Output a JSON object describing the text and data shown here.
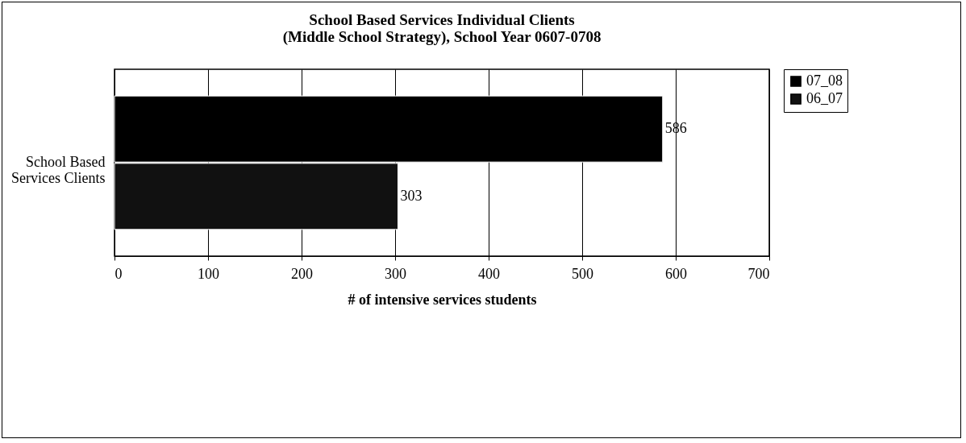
{
  "chart_data": {
    "type": "bar",
    "orientation": "horizontal",
    "title": "School Based Services Individual Clients (Middle School Strategy), School Year 0607-0708",
    "xlabel": "# of intensive services students",
    "categories": [
      "School Based Services Clients"
    ],
    "series": [
      {
        "name": "07_08",
        "color": "#000000",
        "values": [
          586
        ]
      },
      {
        "name": "06_07",
        "color": "#111111",
        "values": [
          303
        ]
      }
    ],
    "xlim": [
      0,
      700
    ],
    "xticks": [
      0,
      100,
      200,
      300,
      400,
      500,
      600,
      700
    ],
    "grid": "x",
    "legend": "right",
    "data_labels": true
  }
}
